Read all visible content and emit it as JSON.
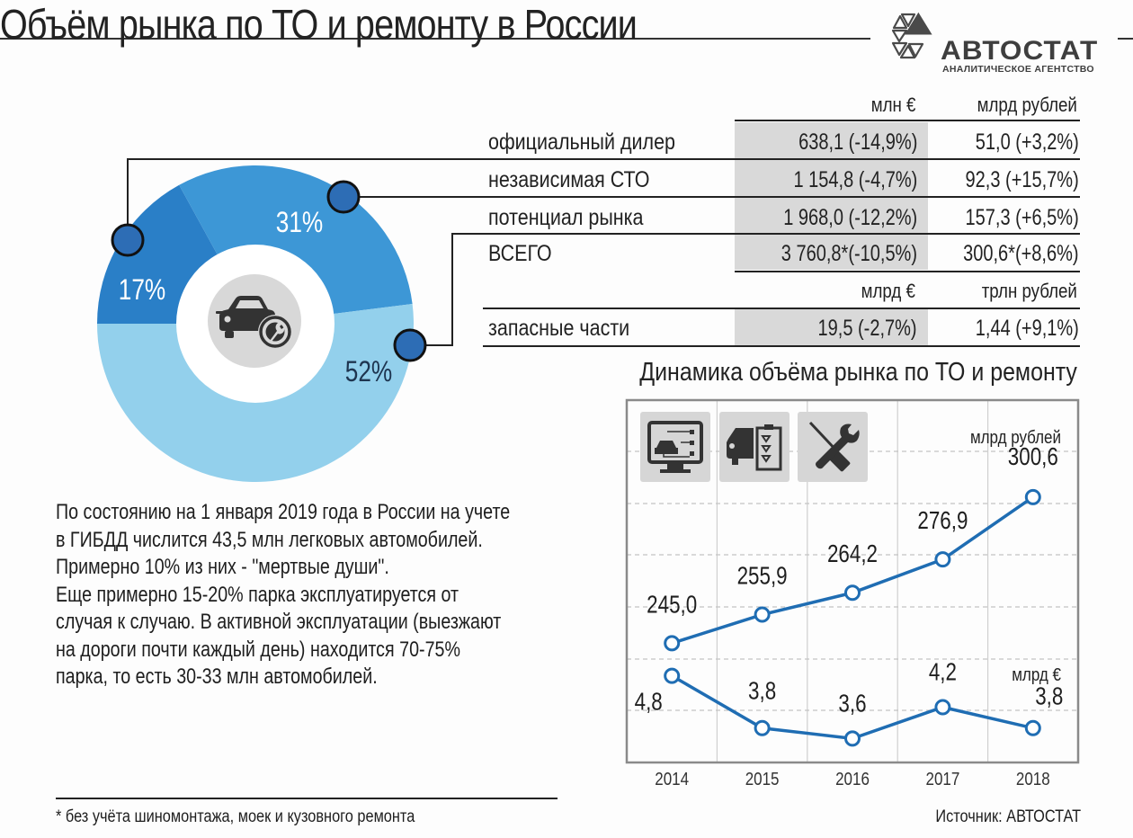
{
  "header": {
    "title": "Объём рынка по ТО и ремонту в России",
    "logo_name": "АВТОСТАТ",
    "logo_subtitle": "АНАЛИТИЧЕСКОЕ АГЕНТСТВО"
  },
  "table": {
    "col_headers": [
      "млн €",
      "млрд рублей"
    ],
    "rows": [
      {
        "label": "официальный дилер",
        "eur": "638,1 (-14,9%)",
        "rub": "51,0 (+3,2%)"
      },
      {
        "label": "независимая СТО",
        "eur": "1 154,8 (-4,7%)",
        "rub": "92,3 (+15,7%)"
      },
      {
        "label": "потенциал рынка",
        "eur": "1 968,0 (-12,2%)",
        "rub": "157,3 (+6,5%)"
      },
      {
        "label": "ВСЕГО",
        "eur": "3 760,8*(-10,5%)",
        "rub": "300,6*(+8,6%)"
      }
    ],
    "parts_headers": [
      "млрд €",
      "трлн рублей"
    ],
    "parts_row": {
      "label": "запасные части",
      "eur": "19,5 (-2,7%)",
      "rub": "1,44 (+9,1%)"
    }
  },
  "description": [
    "По состоянию на 1 января 2019 года в России на учете в ГИБДД числится 43,5 млн легковых автомобилей.",
    "Примерно 10% из них - \"мертвые души\".",
    "Еще примерно 15-20% парка эксплуатируется от случая к случаю. В активной эксплуатации (выезжают на дороги почти каждый день) находится 70-75% парка, то есть 30-33 млн автомобилей."
  ],
  "footnote": "* без учёта шиномонтажа, моек и кузовного ремонта",
  "source": "Источник: АВТОСТАТ",
  "colors": {
    "dark_blue": "#2a7fc7",
    "mid_blue": "#3d97d6",
    "light_blue": "#93d0ec",
    "marker": "#2d6db5",
    "line": "#1f6db3",
    "shade": "#d9d9d9"
  },
  "chart_data": [
    {
      "type": "pie",
      "title": "",
      "categories": [
        "официальный дилер",
        "независимая СТО",
        "потенциал рынка"
      ],
      "values": [
        17,
        31,
        52
      ],
      "labels": [
        "17%",
        "31%",
        "52%"
      ],
      "center_icon": "car-wrench-icon"
    },
    {
      "type": "line",
      "title": "Динамика объёма рынка по ТО и ремонту",
      "categories": [
        "2014",
        "2015",
        "2016",
        "2017",
        "2018"
      ],
      "series": [
        {
          "name": "млрд рублей",
          "values": [
            245.0,
            255.9,
            264.2,
            276.9,
            300.6
          ],
          "labels": [
            "245,0",
            "255,9",
            "264,2",
            "276,9",
            "300,6"
          ]
        },
        {
          "name": "млрд €",
          "values": [
            4.8,
            3.8,
            3.6,
            4.2,
            3.8
          ],
          "labels": [
            "4,8",
            "3,8",
            "3,6",
            "4,2",
            "3,8"
          ]
        }
      ],
      "grid": true,
      "icons": [
        "monitor-diagnostics-icon",
        "car-checklist-icon",
        "tools-icon"
      ]
    }
  ]
}
